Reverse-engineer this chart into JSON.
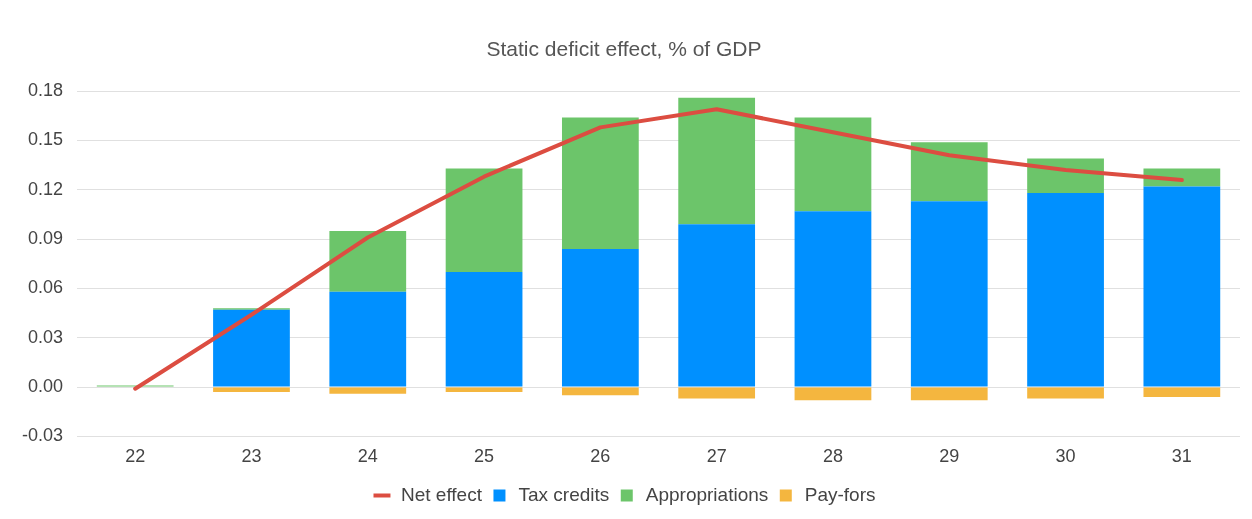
{
  "chart_data": {
    "type": "bar",
    "title": "Static deficit effect, % of GDP",
    "stacked": true,
    "categories": [
      "22",
      "23",
      "24",
      "25",
      "26",
      "27",
      "28",
      "29",
      "30",
      "31"
    ],
    "series": [
      {
        "name": "Tax credits",
        "color": "#0090ff",
        "values": [
          0,
          0.047,
          0.058,
          0.07,
          0.084,
          0.099,
          0.107,
          0.113,
          0.118,
          0.122
        ]
      },
      {
        "name": "Appropriations",
        "color": "#6cc56a",
        "values": [
          0.001,
          0.001,
          0.037,
          0.063,
          0.08,
          0.077,
          0.057,
          0.036,
          0.021,
          0.011
        ]
      },
      {
        "name": "Pay-fors",
        "color": "#f4b63f",
        "values": [
          0,
          -0.003,
          -0.004,
          -0.003,
          -0.005,
          -0.007,
          -0.008,
          -0.008,
          -0.007,
          -0.006
        ]
      },
      {
        "name": "Net effect",
        "type": "line",
        "color": "#dc4d41",
        "values": [
          -0.001,
          0.044,
          0.091,
          0.128,
          0.158,
          0.169,
          0.155,
          0.141,
          0.132,
          0.126
        ]
      }
    ],
    "ylim": [
      -0.03,
      0.18
    ],
    "yticks": [
      -0.03,
      {
        "value": 0,
        "label": "0.00"
      },
      0.03,
      0.06,
      0.09,
      0.12,
      0.15,
      0.18
    ],
    "grid": "y",
    "legend": "bottom",
    "marker": "none"
  }
}
